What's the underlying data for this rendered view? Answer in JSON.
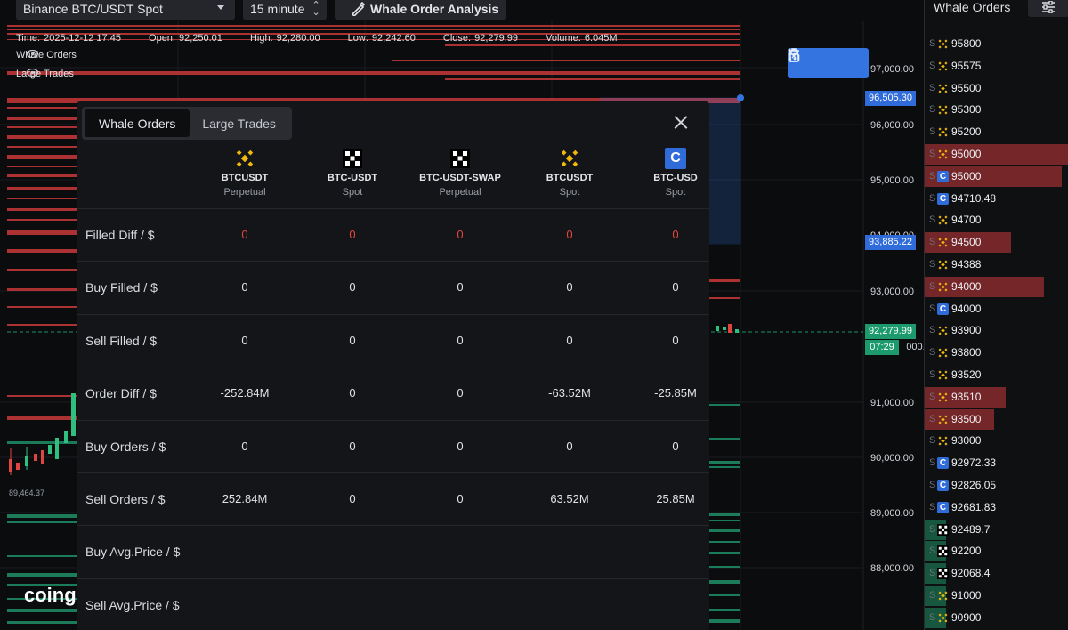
{
  "toolbar": {
    "symbol": "Binance BTC/USDT Spot",
    "interval": "15 minute",
    "analysis_button": "Whale Order Analysis"
  },
  "legend": {
    "time_label": "Time:",
    "time": "2025-12-12 17:45",
    "open_label": "Open:",
    "open": "92,250.01",
    "high_label": "High:",
    "high": "92,280.00",
    "low_label": "Low:",
    "low": "92,242.60",
    "close_label": "Close:",
    "close": "92,279.99",
    "volume_label": "Volume:",
    "volume": "6.045M",
    "indicators": [
      "Whale Orders",
      "Large Trades"
    ]
  },
  "price_axis": {
    "ticks": [
      "97,000.00",
      "96,000.00",
      "95,000.00",
      "93,000.00",
      "91,000.00",
      "90,000.00",
      "89,000.00",
      "88,000.00"
    ],
    "partial_ticks": [
      "94,000.00",
      "92,000.00"
    ],
    "tag_top": "96,505.30",
    "tag_mid": "93,885.22",
    "tag_last": "92,279.99",
    "tag_countdown": "07:29"
  },
  "chart": {
    "low_marker": "89,464.37",
    "watermark": "coing"
  },
  "modal": {
    "tabs": [
      "Whale Orders",
      "Large Trades"
    ],
    "active_tab": 0,
    "columns": [
      {
        "icon": "binance-icon",
        "name": "BTCUSDT",
        "type": "Perpetual"
      },
      {
        "icon": "okx-icon",
        "name": "BTC-USDT",
        "type": "Spot"
      },
      {
        "icon": "okx-icon",
        "name": "BTC-USDT-SWAP",
        "type": "Perpetual"
      },
      {
        "icon": "binance-icon",
        "name": "BTCUSDT",
        "type": "Spot"
      },
      {
        "icon": "coinbase-icon",
        "name": "BTC-USD",
        "type": "Spot"
      }
    ],
    "rows": [
      {
        "label": "Filled Diff / $",
        "values": [
          "0",
          "0",
          "0",
          "0",
          "0"
        ],
        "negative": true
      },
      {
        "label": "Buy Filled / $",
        "values": [
          "0",
          "0",
          "0",
          "0",
          "0"
        ]
      },
      {
        "label": "Sell Filled / $",
        "values": [
          "0",
          "0",
          "0",
          "0",
          "0"
        ]
      },
      {
        "label": "Order Diff / $",
        "values": [
          "-252.84M",
          "0",
          "0",
          "-63.52M",
          "-25.85M"
        ]
      },
      {
        "label": "Buy Orders / $",
        "values": [
          "0",
          "0",
          "0",
          "0",
          "0"
        ]
      },
      {
        "label": "Sell Orders / $",
        "values": [
          "252.84M",
          "0",
          "0",
          "63.52M",
          "25.85M"
        ]
      },
      {
        "label": "Buy Avg.Price / $",
        "values": [
          "",
          "",
          "",
          "",
          ""
        ]
      },
      {
        "label": "Sell Avg.Price / $",
        "values": [
          "",
          "",
          "",
          "",
          ""
        ]
      }
    ]
  },
  "sidebar": {
    "title": "Whale Orders",
    "orders": [
      {
        "side": "S",
        "ex": "binance-icon",
        "price": "95800",
        "depth": 0
      },
      {
        "side": "S",
        "ex": "binance-icon",
        "price": "95575",
        "depth": 0
      },
      {
        "side": "S",
        "ex": "binance-icon",
        "price": "95500",
        "depth": 0
      },
      {
        "side": "S",
        "ex": "binance-icon",
        "price": "95300",
        "depth": 0
      },
      {
        "side": "S",
        "ex": "binance-icon",
        "price": "95200",
        "depth": 0
      },
      {
        "side": "S",
        "ex": "binance-icon",
        "price": "95000",
        "depth": 1.0
      },
      {
        "side": "S",
        "ex": "coinbase-icon",
        "price": "95000",
        "depth": 0.95
      },
      {
        "side": "S",
        "ex": "coinbase-icon",
        "price": "94710.48",
        "depth": 0
      },
      {
        "side": "S",
        "ex": "binance-icon",
        "price": "94700",
        "depth": 0
      },
      {
        "side": "S",
        "ex": "binance-icon",
        "price": "94500",
        "depth": 0.6
      },
      {
        "side": "S",
        "ex": "binance-icon",
        "price": "94388",
        "depth": 0
      },
      {
        "side": "S",
        "ex": "binance-icon",
        "price": "94000",
        "depth": 0.83
      },
      {
        "side": "S",
        "ex": "coinbase-icon",
        "price": "94000",
        "depth": 0
      },
      {
        "side": "S",
        "ex": "binance-icon",
        "price": "93900",
        "depth": 0
      },
      {
        "side": "S",
        "ex": "binance-icon",
        "price": "93800",
        "depth": 0
      },
      {
        "side": "S",
        "ex": "binance-icon",
        "price": "93520",
        "depth": 0
      },
      {
        "side": "S",
        "ex": "binance-icon",
        "price": "93510",
        "depth": 0.56
      },
      {
        "side": "S",
        "ex": "binance-icon",
        "price": "93500",
        "depth": 0.48
      },
      {
        "side": "S",
        "ex": "binance-icon",
        "price": "93000",
        "depth": 0
      },
      {
        "side": "S",
        "ex": "coinbase-icon",
        "price": "92972.33",
        "depth": 0
      },
      {
        "side": "S",
        "ex": "coinbase-icon",
        "price": "92826.05",
        "depth": 0
      },
      {
        "side": "S",
        "ex": "coinbase-icon",
        "price": "92681.83",
        "depth": 0
      },
      {
        "side": "S",
        "ex": "okx-icon",
        "price": "92489.7",
        "depth": 0
      },
      {
        "side": "S",
        "ex": "okx-icon",
        "price": "92200",
        "depth": 0
      },
      {
        "side": "S",
        "ex": "okx-icon",
        "price": "92068.4",
        "depth": 0
      },
      {
        "side": "S",
        "ex": "binance-icon",
        "price": "91000",
        "depth": 0
      },
      {
        "side": "S",
        "ex": "binance-icon",
        "price": "90900",
        "depth": 0
      }
    ]
  },
  "colors": {
    "sell": "#c8383a",
    "buy": "#1f8f65",
    "accent": "#3474e0",
    "binance": "#f0b90b"
  }
}
